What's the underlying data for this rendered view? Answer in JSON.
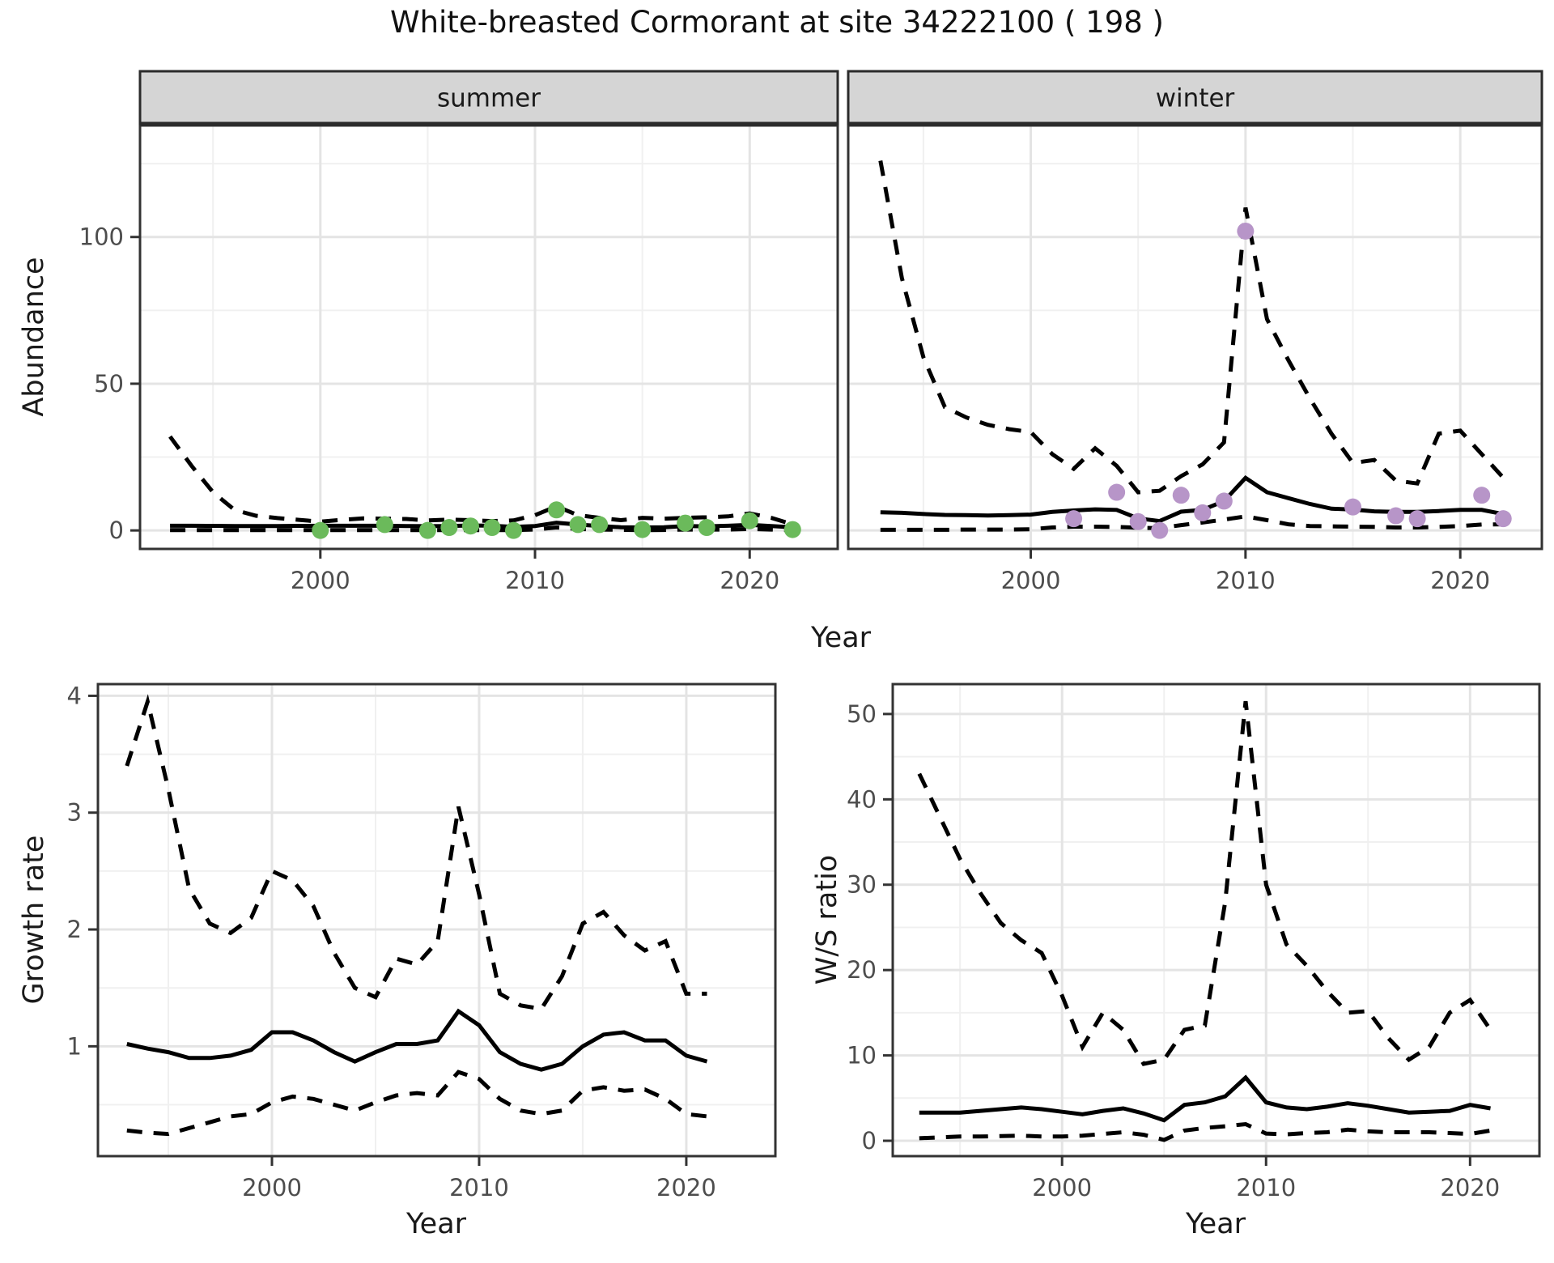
{
  "title": "White-breasted Cormorant at site 34222100 ( 198 )",
  "axis_labels": {
    "abundance": "Abundance",
    "year": "Year",
    "growth": "Growth rate",
    "ws": "W/S ratio"
  },
  "colors": {
    "summer_point": "#6BBA5B",
    "winter_point": "#B795C8",
    "line": "#000000",
    "grid_major": "#E4E4E4",
    "grid_minor": "#F0F0F0",
    "strip_bg": "#D5D5D5",
    "strip_border": "#2B2B2B",
    "panel_border": "#333333",
    "tick_text": "#4D4D4D"
  },
  "chart_data": [
    {
      "id": "summer",
      "type": "line",
      "facet_label": "summer",
      "ylabel": "Abundance",
      "xlabel": "Year",
      "x": [
        1993,
        1994,
        1995,
        1996,
        1997,
        1998,
        1999,
        2000,
        2001,
        2002,
        2003,
        2004,
        2005,
        2006,
        2007,
        2008,
        2009,
        2010,
        2011,
        2012,
        2013,
        2014,
        2015,
        2016,
        2017,
        2018,
        2019,
        2020,
        2021,
        2022
      ],
      "series": [
        {
          "name": "upper-ci",
          "style": "dashed",
          "values": [
            32,
            22,
            13,
            7,
            5,
            4.2,
            3.6,
            3,
            3.6,
            4.1,
            4,
            3.9,
            3.4,
            3.7,
            3.5,
            3.2,
            3.4,
            5.2,
            8.2,
            5.2,
            4.3,
            3.5,
            4.3,
            4,
            4.3,
            4.5,
            4.8,
            5.8,
            4.3,
            2.1
          ]
        },
        {
          "name": "median",
          "style": "solid",
          "values": [
            1.6,
            1.6,
            1.55,
            1.5,
            1.5,
            1.5,
            1.55,
            1.6,
            1.6,
            1.6,
            1.6,
            1.5,
            1.45,
            1.5,
            1.7,
            1.6,
            1.2,
            1.5,
            2.6,
            2,
            1.5,
            1.1,
            1,
            1.1,
            1.5,
            1.4,
            1.6,
            1.9,
            1.5,
            1.1
          ]
        },
        {
          "name": "lower-ci",
          "style": "dashed",
          "values": [
            0.1,
            0.1,
            0.1,
            0.1,
            0.1,
            0.1,
            0.1,
            0.1,
            0.1,
            0.1,
            0.1,
            0.1,
            0.1,
            0.1,
            0.1,
            0.1,
            0.1,
            0.3,
            1,
            0.5,
            0.3,
            0.2,
            0.1,
            0.15,
            0.3,
            0.3,
            0.3,
            0.5,
            0.3,
            0.05
          ]
        }
      ],
      "points": {
        "color_key": "summer_point",
        "data": [
          [
            2000,
            0
          ],
          [
            2003,
            2
          ],
          [
            2005,
            0
          ],
          [
            2006,
            1
          ],
          [
            2007,
            1.5
          ],
          [
            2008,
            1
          ],
          [
            2009,
            0
          ],
          [
            2011,
            7
          ],
          [
            2012,
            2
          ],
          [
            2013,
            2
          ],
          [
            2015,
            0.3
          ],
          [
            2017,
            2.5
          ],
          [
            2018,
            1
          ],
          [
            2020,
            3.3
          ],
          [
            2022,
            0.3
          ]
        ]
      },
      "xlim": [
        1991.6,
        2024.1
      ],
      "ylim": [
        -6.3,
        138
      ],
      "xticks": [
        2000,
        2010,
        2020
      ],
      "xticks_minor": [
        1995,
        2005,
        2015
      ],
      "yticks": [
        0,
        50,
        100
      ],
      "yticks_minor": [
        25,
        75,
        125
      ],
      "show_y_labels": true
    },
    {
      "id": "winter",
      "type": "line",
      "facet_label": "winter",
      "ylabel": "Abundance",
      "xlabel": "Year",
      "x": [
        1993,
        1994,
        1995,
        1996,
        1997,
        1998,
        1999,
        2000,
        2001,
        2002,
        2003,
        2004,
        2005,
        2006,
        2007,
        2008,
        2009,
        2010,
        2011,
        2012,
        2013,
        2014,
        2015,
        2016,
        2017,
        2018,
        2019,
        2020,
        2021,
        2022
      ],
      "series": [
        {
          "name": "upper-ci",
          "style": "dashed",
          "values": [
            126,
            86,
            59,
            42,
            38.5,
            36,
            34.5,
            33.5,
            26,
            21,
            28,
            22,
            13,
            13.5,
            18.5,
            22.5,
            30,
            110,
            72,
            58,
            45,
            33,
            23,
            24,
            17,
            16,
            33,
            34,
            26,
            18
          ]
        },
        {
          "name": "median",
          "style": "solid",
          "values": [
            6.2,
            6,
            5.6,
            5.3,
            5.2,
            5.1,
            5.2,
            5.4,
            6.3,
            6.8,
            7.2,
            7,
            4.1,
            3.2,
            6.4,
            7,
            10,
            17.9,
            13,
            11,
            9,
            7.4,
            7.1,
            6.5,
            6.3,
            6.3,
            6.6,
            7,
            7,
            5.6
          ]
        },
        {
          "name": "lower-ci",
          "style": "dashed",
          "values": [
            0.2,
            0.2,
            0.2,
            0.2,
            0.3,
            0.3,
            0.3,
            0.4,
            1,
            1.3,
            1.3,
            1.2,
            0.9,
            0.8,
            1.8,
            2.7,
            3.7,
            4.8,
            3.5,
            2.1,
            1.5,
            1.4,
            1.3,
            1.2,
            1,
            1,
            1.2,
            1.5,
            2,
            2.1
          ]
        }
      ],
      "points": {
        "color_key": "winter_point",
        "data": [
          [
            2002,
            4
          ],
          [
            2004,
            13
          ],
          [
            2005,
            3
          ],
          [
            2006,
            0
          ],
          [
            2007,
            12
          ],
          [
            2008,
            6
          ],
          [
            2009,
            10
          ],
          [
            2010,
            102
          ],
          [
            2015,
            8
          ],
          [
            2017,
            5
          ],
          [
            2018,
            4
          ],
          [
            2021,
            12
          ],
          [
            2022,
            4
          ]
        ]
      },
      "xlim": [
        1991.5,
        2023.8
      ],
      "ylim": [
        -6.3,
        138
      ],
      "xticks": [
        2000,
        2010,
        2020
      ],
      "xticks_minor": [
        1995,
        2005,
        2015
      ],
      "yticks": [
        0,
        50,
        100
      ],
      "yticks_minor": [
        25,
        75,
        125
      ],
      "show_y_labels": false
    },
    {
      "id": "growth",
      "type": "line",
      "facet_label": null,
      "ylabel": "Growth rate",
      "xlabel": "Year",
      "x": [
        1993,
        1994,
        1995,
        1996,
        1997,
        1998,
        1999,
        2000,
        2001,
        2002,
        2003,
        2004,
        2005,
        2006,
        2007,
        2008,
        2009,
        2010,
        2011,
        2012,
        2013,
        2014,
        2015,
        2016,
        2017,
        2018,
        2019,
        2020,
        2021
      ],
      "series": [
        {
          "name": "upper-ci",
          "style": "dashed",
          "values": [
            3.4,
            3.95,
            3.2,
            2.35,
            2.05,
            1.97,
            2.1,
            2.5,
            2.42,
            2.2,
            1.8,
            1.5,
            1.42,
            1.75,
            1.7,
            1.9,
            3.05,
            2.3,
            1.45,
            1.35,
            1.32,
            1.6,
            2.05,
            2.15,
            1.95,
            1.82,
            1.9,
            1.45,
            1.45
          ]
        },
        {
          "name": "median",
          "style": "solid",
          "values": [
            1.02,
            0.98,
            0.95,
            0.9,
            0.9,
            0.92,
            0.97,
            1.12,
            1.12,
            1.05,
            0.95,
            0.87,
            0.95,
            1.02,
            1.02,
            1.05,
            1.3,
            1.18,
            0.95,
            0.85,
            0.8,
            0.85,
            1,
            1.1,
            1.12,
            1.05,
            1.05,
            0.92,
            0.87
          ]
        },
        {
          "name": "lower-ci",
          "style": "dashed",
          "values": [
            0.28,
            0.26,
            0.25,
            0.3,
            0.35,
            0.4,
            0.42,
            0.52,
            0.57,
            0.55,
            0.5,
            0.45,
            0.52,
            0.58,
            0.6,
            0.58,
            0.78,
            0.72,
            0.55,
            0.45,
            0.42,
            0.45,
            0.62,
            0.65,
            0.62,
            0.63,
            0.55,
            0.42,
            0.4
          ]
        }
      ],
      "points": null,
      "xlim": [
        1991.6,
        2024.3
      ],
      "ylim": [
        0.06,
        4.1
      ],
      "xticks": [
        2000,
        2010,
        2020
      ],
      "xticks_minor": [
        1995,
        2005,
        2015
      ],
      "yticks": [
        1,
        2,
        3,
        4
      ],
      "yticks_minor": [
        0.5,
        1.5,
        2.5,
        3.5
      ],
      "show_y_labels": true
    },
    {
      "id": "ws",
      "type": "line",
      "facet_label": null,
      "ylabel": "W/S ratio",
      "xlabel": "Year",
      "x": [
        1993,
        1994,
        1995,
        1996,
        1997,
        1998,
        1999,
        2000,
        2001,
        2002,
        2003,
        2004,
        2005,
        2006,
        2007,
        2008,
        2009,
        2010,
        2011,
        2012,
        2013,
        2014,
        2015,
        2016,
        2017,
        2018,
        2019,
        2020,
        2021
      ],
      "series": [
        {
          "name": "upper-ci",
          "style": "dashed",
          "values": [
            43,
            38,
            33,
            29,
            25.5,
            23.5,
            22,
            17,
            11,
            15,
            13,
            9,
            9.5,
            13,
            13.5,
            28,
            51.5,
            30,
            23,
            20.5,
            17.5,
            15,
            15.2,
            12,
            9.5,
            11,
            15,
            16.5,
            13
          ]
        },
        {
          "name": "median",
          "style": "solid",
          "values": [
            3.3,
            3.3,
            3.3,
            3.5,
            3.7,
            3.9,
            3.7,
            3.4,
            3.1,
            3.5,
            3.8,
            3.2,
            2.4,
            4.2,
            4.5,
            5.2,
            7.4,
            4.5,
            3.9,
            3.7,
            4,
            4.4,
            4.1,
            3.7,
            3.3,
            3.4,
            3.5,
            4.2,
            3.8
          ]
        },
        {
          "name": "lower-ci",
          "style": "dashed",
          "values": [
            0.3,
            0.4,
            0.5,
            0.5,
            0.55,
            0.6,
            0.5,
            0.5,
            0.6,
            0.8,
            1,
            0.7,
            0.1,
            1.2,
            1.5,
            1.7,
            1.95,
            0.85,
            0.75,
            0.9,
            1,
            1.3,
            1.1,
            1,
            1,
            1,
            0.9,
            0.8,
            1.2
          ]
        }
      ],
      "points": null,
      "xlim": [
        1991.7,
        2023.4
      ],
      "ylim": [
        -1.8,
        53.5
      ],
      "xticks": [
        2000,
        2010,
        2020
      ],
      "xticks_minor": [
        1995,
        2005,
        2015
      ],
      "yticks": [
        0,
        10,
        20,
        30,
        40,
        50
      ],
      "yticks_minor": [
        5,
        15,
        25,
        35,
        45
      ],
      "show_y_labels": true
    }
  ]
}
